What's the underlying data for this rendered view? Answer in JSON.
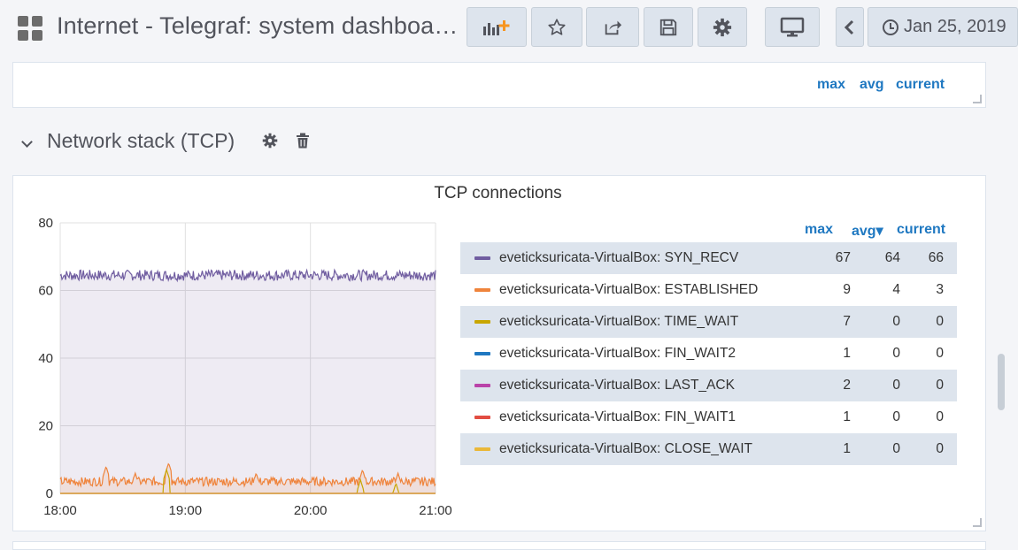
{
  "dashboard": {
    "title": "Internet - Telegraf: system dashboa…",
    "time_range": "Jan 25, 2019"
  },
  "toolbar": {
    "add_panel_icon": "add-panel-icon",
    "star_icon": "star-icon",
    "share_icon": "share-icon",
    "save_icon": "save-icon",
    "settings_icon": "gear-icon",
    "tv_icon": "monitor-icon",
    "back_icon": "chevron-left-icon"
  },
  "prev_panel": {
    "legend_headers": {
      "max": "max",
      "avg": "avg",
      "current": "current"
    }
  },
  "row": {
    "title": "Network stack (TCP)"
  },
  "panel": {
    "title": "TCP connections",
    "legend_headers": {
      "max": "max",
      "avg": "avg▾",
      "current": "current"
    },
    "legend": [
      {
        "name": "eveticksuricata-VirtualBox: SYN_RECV",
        "color": "#705da0",
        "max": "67",
        "avg": "64",
        "current": "66"
      },
      {
        "name": "eveticksuricata-VirtualBox: ESTABLISHED",
        "color": "#ef843c",
        "max": "9",
        "avg": "4",
        "current": "3"
      },
      {
        "name": "eveticksuricata-VirtualBox: TIME_WAIT",
        "color": "#c8a600",
        "max": "7",
        "avg": "0",
        "current": "0"
      },
      {
        "name": "eveticksuricata-VirtualBox: FIN_WAIT2",
        "color": "#1f78c1",
        "max": "1",
        "avg": "0",
        "current": "0"
      },
      {
        "name": "eveticksuricata-VirtualBox: LAST_ACK",
        "color": "#ba43a9",
        "max": "2",
        "avg": "0",
        "current": "0"
      },
      {
        "name": "eveticksuricata-VirtualBox: FIN_WAIT1",
        "color": "#e24d42",
        "max": "1",
        "avg": "0",
        "current": "0"
      },
      {
        "name": "eveticksuricata-VirtualBox: CLOSE_WAIT",
        "color": "#eab839",
        "max": "1",
        "avg": "0",
        "current": "0"
      }
    ]
  },
  "chart_data": {
    "type": "line",
    "title": "TCP connections",
    "xlabel": "",
    "ylabel": "",
    "x_ticks": [
      "18:00",
      "19:00",
      "20:00",
      "21:00"
    ],
    "y_ticks": [
      "0",
      "20",
      "40",
      "60",
      "80"
    ],
    "ylim": [
      0,
      80
    ],
    "xlim": [
      "18:00",
      "21:00"
    ],
    "grid": true,
    "legend_placement": "right",
    "series": [
      {
        "name": "eveticksuricata-VirtualBox: SYN_RECV",
        "color": "#705da0",
        "base": 64.5,
        "noise": 1.6,
        "fill": true
      },
      {
        "name": "eveticksuricata-VirtualBox: ESTABLISHED",
        "color": "#ef843c",
        "base": 3.5,
        "noise": 1.3,
        "fill": true,
        "spikes": [
          [
            "18:22",
            8
          ],
          [
            "18:36",
            6
          ],
          [
            "18:52",
            9
          ],
          [
            "19:34",
            6
          ],
          [
            "20:25",
            7
          ],
          [
            "20:42",
            6
          ]
        ]
      },
      {
        "name": "eveticksuricata-VirtualBox: TIME_WAIT",
        "color": "#c8a600",
        "base": 0,
        "noise": 0,
        "fill": false,
        "spikes": [
          [
            "18:51",
            7
          ],
          [
            "20:24",
            4
          ],
          [
            "20:41",
            3
          ]
        ]
      },
      {
        "name": "eveticksuricata-VirtualBox: FIN_WAIT2",
        "color": "#1f78c1",
        "base": 0,
        "noise": 0,
        "fill": false
      },
      {
        "name": "eveticksuricata-VirtualBox: LAST_ACK",
        "color": "#ba43a9",
        "base": 0,
        "noise": 0,
        "fill": false
      },
      {
        "name": "eveticksuricata-VirtualBox: FIN_WAIT1",
        "color": "#e24d42",
        "base": 0,
        "noise": 0,
        "fill": false
      },
      {
        "name": "eveticksuricata-VirtualBox: CLOSE_WAIT",
        "color": "#eab839",
        "base": 0,
        "noise": 0,
        "fill": false
      }
    ]
  }
}
